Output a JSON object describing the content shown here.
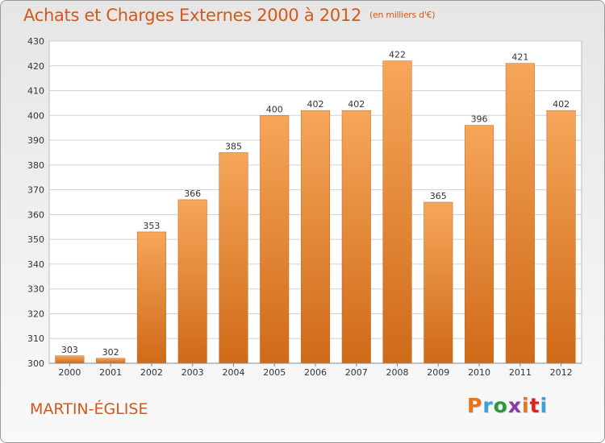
{
  "title": "Achats et Charges Externes 2000 à 2012",
  "title_unit": "(en milliers d'€)",
  "location": "MARTIN-ÉGLISE",
  "logo": {
    "text": "Proxiti",
    "colors": [
      "#e8731a",
      "#3aa0d8",
      "#2a9a3a",
      "#8a3aa8",
      "#e8731a",
      "#e02020",
      "#3aa0d8"
    ]
  },
  "colors": {
    "bar_top": "#f6a65a",
    "bar_bottom": "#cf6a18",
    "accent": "#d4581a",
    "grid": "#d0d0d0"
  },
  "chart_data": {
    "type": "bar",
    "title": "Achats et Charges Externes 2000 à 2012",
    "xlabel": "",
    "ylabel": "",
    "categories": [
      "2000",
      "2001",
      "2002",
      "2003",
      "2004",
      "2005",
      "2006",
      "2007",
      "2008",
      "2009",
      "2010",
      "2011",
      "2012"
    ],
    "values": [
      303,
      302,
      353,
      366,
      385,
      400,
      402,
      402,
      422,
      365,
      396,
      421,
      402
    ],
    "ylim": [
      300,
      430
    ],
    "yticks": [
      300,
      310,
      320,
      330,
      340,
      350,
      360,
      370,
      380,
      390,
      400,
      410,
      420,
      430
    ],
    "grid": true,
    "data_labels": true
  }
}
